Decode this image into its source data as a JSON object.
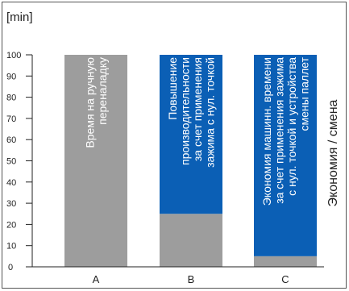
{
  "chart_data": {
    "type": "bar",
    "unit_label": "[min]",
    "categories": [
      "A",
      "B",
      "C"
    ],
    "ylim": [
      0,
      100
    ],
    "yticks": [
      10,
      20,
      30,
      40,
      50,
      60,
      70,
      80,
      90,
      100
    ],
    "side_label": "Экономия / смена",
    "series": [
      {
        "name": "",
        "color": "#9d9d9d",
        "values": [
          100,
          25,
          5
        ]
      },
      {
        "name": "",
        "color": "#0b5fb5",
        "values": [
          0,
          75,
          95
        ]
      }
    ],
    "bar_labels": [
      {
        "lines": [
          "Время на ручную",
          "переналадку"
        ],
        "color": "#ffffff"
      },
      {
        "lines": [
          "Повышение",
          "производительности",
          "за счет применения",
          "зажима с нул. точкой"
        ],
        "color": "#ffffff"
      },
      {
        "lines": [
          "Экономия машинн. времени",
          "за счет применения зажима",
          "с нул. точкой и устройства",
          "смены паллет"
        ],
        "color": "#ffffff"
      }
    ],
    "colors": {
      "frame": "#555555",
      "axis": "#222222",
      "text": "#222222"
    }
  }
}
